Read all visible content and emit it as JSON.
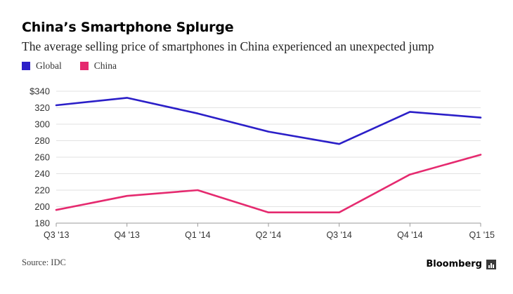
{
  "title": "China’s Smartphone Splurge",
  "subtitle": "The average selling price of smartphones in China experienced an unexpected jump",
  "source": "Source: IDC",
  "brand": "Bloomberg",
  "brand_icon": "bloomberg-chart-icon",
  "chart_data": {
    "type": "line",
    "title": "China’s Smartphone Splurge",
    "subtitle": "The average selling price of smartphones in China experienced an unexpected jump",
    "categories": [
      "Q3 '13",
      "Q4 '13",
      "Q1 '14",
      "Q2 '14",
      "Q3 '14",
      "Q4 '14",
      "Q1 '15"
    ],
    "series": [
      {
        "name": "Global",
        "color": "#2b1fc8",
        "values": [
          323,
          332,
          313,
          291,
          276,
          315,
          308
        ]
      },
      {
        "name": "China",
        "color": "#e52a6f",
        "values": [
          196,
          213,
          220,
          193,
          193,
          239,
          263
        ]
      }
    ],
    "ylim": [
      180,
      340
    ],
    "yticks": [
      180,
      200,
      220,
      240,
      260,
      280,
      300,
      320,
      340
    ],
    "ytick_labels": [
      "180",
      "200",
      "220",
      "240",
      "260",
      "280",
      "300",
      "320",
      "$340"
    ],
    "grid": true,
    "legend_position": "top-left",
    "xlabel": "",
    "ylabel": ""
  }
}
